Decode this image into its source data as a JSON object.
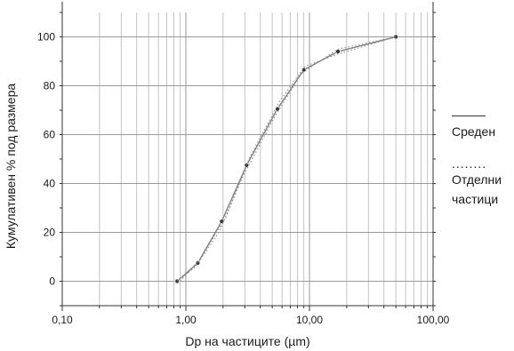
{
  "chart_data": {
    "type": "line",
    "xlabel": "Dp на частиците (µm)",
    "ylabel": "Кумулативен % под размера",
    "xscale": "log",
    "xlim": [
      0.1,
      100
    ],
    "ylim": [
      -10,
      110
    ],
    "xticks": [
      0.1,
      1,
      10,
      100
    ],
    "xtick_labels": [
      "0,10",
      "1,00",
      "10,00",
      "100,00"
    ],
    "yticks": [
      0,
      20,
      40,
      60,
      80,
      100
    ],
    "ytick_labels": [
      "0",
      "20",
      "40",
      "60",
      "80",
      "100"
    ],
    "grid": true,
    "legend_position": "right",
    "series": [
      {
        "name": "Среден",
        "style": "solid",
        "color": "#7f7f7f",
        "x": [
          0.85,
          1.25,
          1.95,
          3.1,
          5.5,
          9.0,
          17.0,
          50.0
        ],
        "y": [
          0,
          7.5,
          24.5,
          47.5,
          70.5,
          86.5,
          94,
          100
        ]
      },
      {
        "name": "Отделни частици",
        "style": "dotted",
        "color": "#8c8c8c",
        "x": [
          0.9,
          1.3,
          2.1,
          3.3,
          5.8,
          9.2,
          17.0,
          50.0
        ],
        "y": [
          0,
          9,
          26,
          51,
          74,
          88,
          93,
          100
        ]
      },
      {
        "name": "Отделни частици",
        "style": "dotted",
        "color": "#8c8c8c",
        "x": [
          0.85,
          1.2,
          1.85,
          2.9,
          5.2,
          8.6,
          17.0,
          50.0
        ],
        "y": [
          0,
          6,
          20,
          43,
          67,
          85,
          95,
          100
        ]
      }
    ]
  },
  "legend": {
    "items": [
      {
        "marker": "solid",
        "label": "Среден"
      },
      {
        "marker": "dotted",
        "marker_text": "........",
        "label": "Отделни частици"
      }
    ]
  }
}
